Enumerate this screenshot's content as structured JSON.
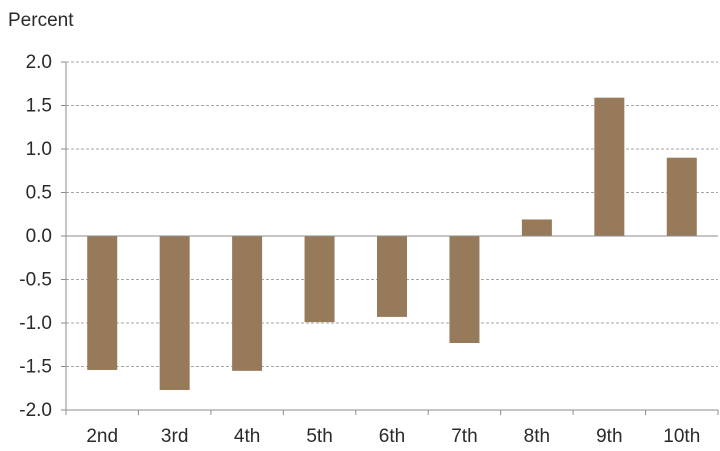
{
  "chart_data": {
    "type": "bar",
    "ylabel": "Percent",
    "categories": [
      "2nd",
      "3rd",
      "4th",
      "5th",
      "6th",
      "7th",
      "8th",
      "9th",
      "10th"
    ],
    "values": [
      -1.54,
      -1.77,
      -1.55,
      -0.99,
      -0.93,
      -1.23,
      0.19,
      1.59,
      0.9
    ],
    "ylim": [
      -2.0,
      2.0
    ],
    "yticks": [
      "2.0",
      "1.5",
      "1.0",
      "0.5",
      "0.0",
      "-0.5",
      "-1.0",
      "-1.5",
      "-2.0"
    ],
    "grid": true,
    "colors": {
      "bar": "#977a5a",
      "grid": "#a6a6a6",
      "axis": "#8c8c8c"
    }
  }
}
